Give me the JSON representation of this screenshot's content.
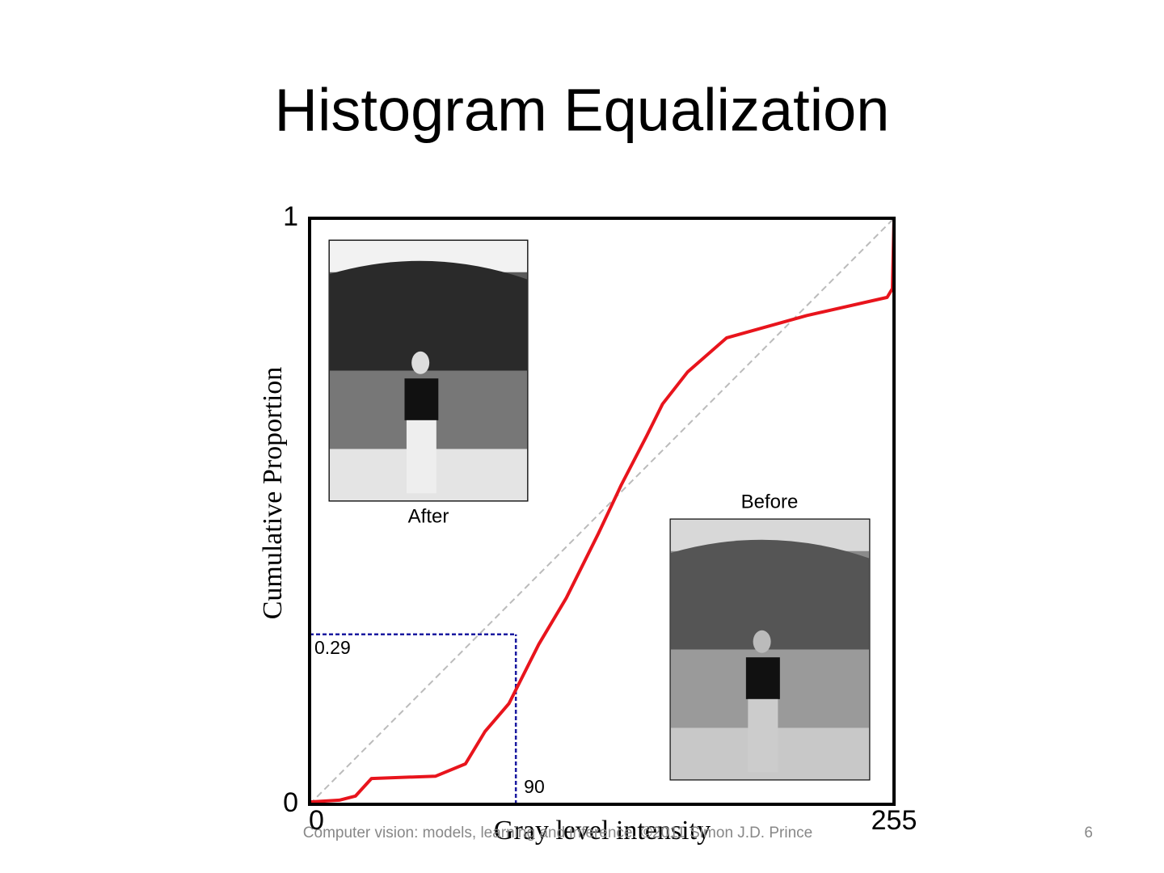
{
  "title": "Histogram Equalization",
  "chart_data": {
    "type": "line",
    "xlabel": "Gray level intensity",
    "ylabel": "Cumulative Proportion",
    "x": [
      0,
      13,
      20,
      27,
      55,
      68,
      76.5,
      87,
      100,
      112,
      126,
      136,
      147,
      154,
      165,
      182,
      217,
      252,
      254.3,
      255
    ],
    "series": [
      {
        "color": "#e8141c",
        "values": [
          0.004,
          0.007,
          0.014,
          0.044,
          0.048,
          0.069,
          0.124,
          0.172,
          0.273,
          0.352,
          0.462,
          0.545,
          0.628,
          0.683,
          0.738,
          0.796,
          0.834,
          0.865,
          0.88,
          1
        ]
      }
    ],
    "xlim": [
      0,
      255
    ],
    "ylim": [
      0,
      1
    ],
    "xticks": [
      0,
      255
    ],
    "yticks": [
      0,
      1
    ],
    "markers": {
      "x": 90,
      "y": 0.29,
      "color": "#1a1aa0"
    },
    "insets": [
      "After",
      "Before"
    ]
  },
  "footer": "Computer vision: models, learning and inference. ©2011 Simon J.D. Prince",
  "page_number": "6"
}
